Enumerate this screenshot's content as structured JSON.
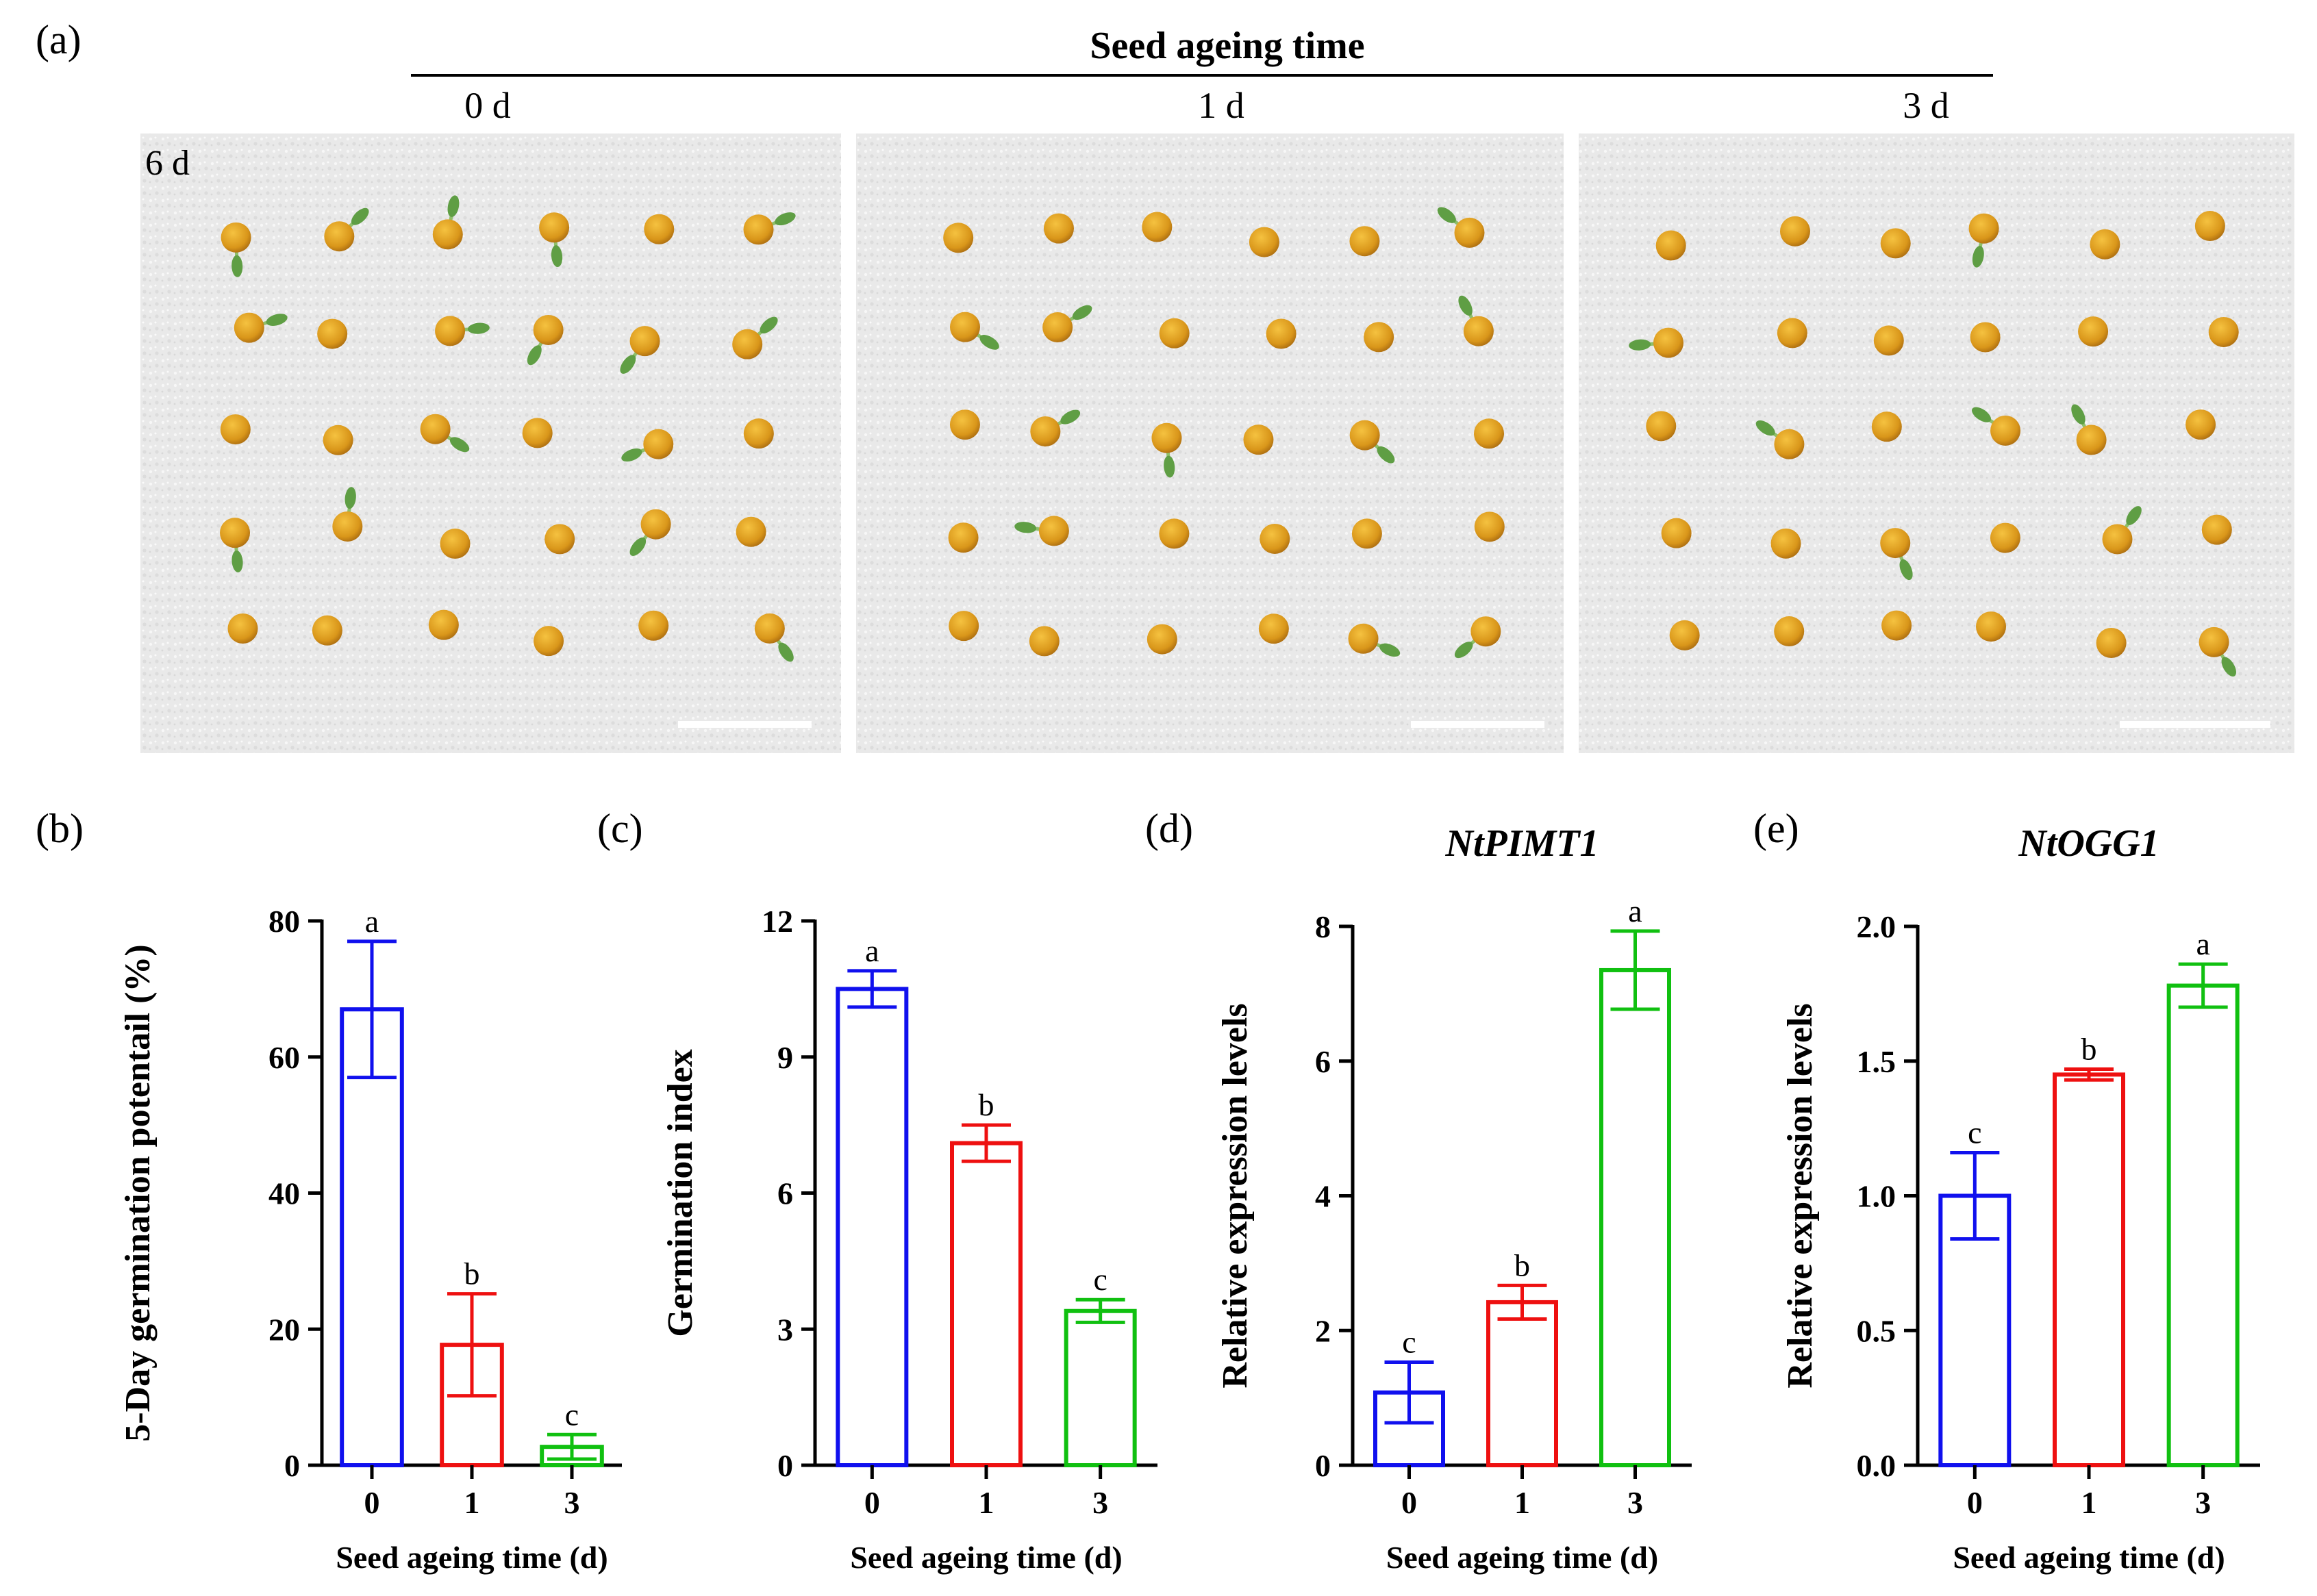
{
  "panel_labels": {
    "a": "(a)",
    "b": "(b)",
    "c": "(c)",
    "d": "(d)",
    "e": "(e)"
  },
  "photo_header": {
    "title": "Seed ageing time",
    "columns": [
      "0 d",
      "1 d",
      "3 d"
    ],
    "day_label": "6 d"
  },
  "colors": {
    "day0": "#1010ee",
    "day1": "#ee1010",
    "day3": "#10c010"
  },
  "chart_data": [
    {
      "id": "b",
      "type": "bar",
      "title": "",
      "categories": [
        "0",
        "1",
        "3"
      ],
      "values": [
        67,
        17.7,
        2.7
      ],
      "errors": [
        10,
        7.5,
        1.8
      ],
      "significance": [
        "a",
        "b",
        "c"
      ],
      "xlabel": "Seed ageing time (d)",
      "ylabel": "5-Day germination potentail (%)",
      "ylim": [
        0,
        80
      ],
      "yticks": [
        "0",
        "20",
        "40",
        "60",
        "80"
      ],
      "ytick_values": [
        0,
        20,
        40,
        60,
        80
      ]
    },
    {
      "id": "c",
      "type": "bar",
      "title": "",
      "categories": [
        "0",
        "1",
        "3"
      ],
      "values": [
        10.5,
        7.1,
        3.4
      ],
      "errors": [
        0.4,
        0.4,
        0.25
      ],
      "significance": [
        "a",
        "b",
        "c"
      ],
      "xlabel": "Seed ageing time (d)",
      "ylabel": "Germination index",
      "ylim": [
        0,
        12
      ],
      "yticks": [
        "0",
        "3",
        "6",
        "9",
        "12"
      ],
      "ytick_values": [
        0,
        3,
        6,
        9,
        12
      ]
    },
    {
      "id": "d",
      "type": "bar",
      "title": "NtPIMT1",
      "categories": [
        "0",
        "1",
        "3"
      ],
      "values": [
        1.08,
        2.42,
        7.35
      ],
      "errors": [
        0.45,
        0.25,
        0.58
      ],
      "significance": [
        "c",
        "b",
        "a"
      ],
      "xlabel": "Seed ageing time (d)",
      "ylabel": "Relative expression levels",
      "ylim": [
        0,
        8
      ],
      "yticks": [
        "0",
        "2",
        "4",
        "6",
        "8"
      ],
      "ytick_values": [
        0,
        2,
        4,
        6,
        8
      ]
    },
    {
      "id": "e",
      "type": "bar",
      "title": "NtOGG1",
      "categories": [
        "0",
        "1",
        "3"
      ],
      "values": [
        1.0,
        1.45,
        1.78
      ],
      "errors": [
        0.16,
        0.02,
        0.08
      ],
      "significance": [
        "c",
        "b",
        "a"
      ],
      "xlabel": "Seed ageing time (d)",
      "ylabel": "Relative expression levels",
      "ylim": [
        0,
        2.0
      ],
      "yticks": [
        "0.0",
        "0.5",
        "1.0",
        "1.5",
        "2.0"
      ],
      "ytick_values": [
        0,
        0.5,
        1.0,
        1.5,
        2.0
      ]
    }
  ]
}
